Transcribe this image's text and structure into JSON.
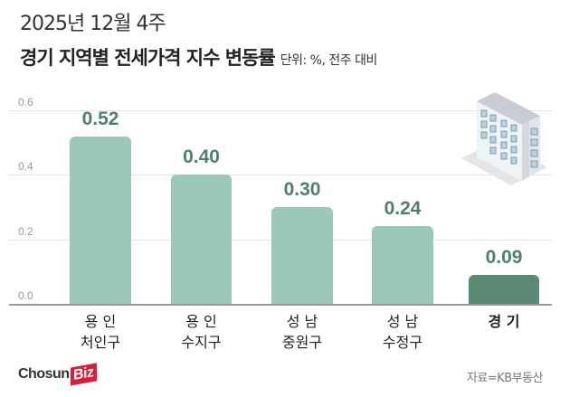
{
  "header": {
    "subtitle": "2025년 12월 4주",
    "title": "경기 지역별 전세가격 지수 변동률",
    "unit": "단위: %, 전주 대비"
  },
  "footer": {
    "logo_text": "Chosun",
    "logo_badge": "Biz",
    "source": "자료=KB부동산"
  },
  "colors": {
    "bar": "#9cc8b9",
    "bar_highlight": "#5a8a74",
    "value_label": "#4e7f6c"
  },
  "chart_data": {
    "type": "bar",
    "title": "경기 지역별 전세가격 지수 변동률",
    "subtitle": "2025년 12월 4주",
    "unit": "단위: %, 전주 대비",
    "categories": [
      "용인 처인구",
      "용인 수지구",
      "성남 중원구",
      "성남 수정구",
      "경기"
    ],
    "category_lines": [
      [
        "용 인",
        "처인구"
      ],
      [
        "용 인",
        "수지구"
      ],
      [
        "성 남",
        "중원구"
      ],
      [
        "성 남",
        "수정구"
      ],
      [
        "경 기",
        ""
      ]
    ],
    "values": [
      0.52,
      0.4,
      0.3,
      0.24,
      0.09
    ],
    "value_labels": [
      "0.52",
      "0.40",
      "0.30",
      "0.24",
      "0.09"
    ],
    "highlight_index": 4,
    "xlabel": "",
    "ylabel": "",
    "ylim": [
      0.0,
      0.6
    ],
    "yticks": [
      "0.0",
      "0.2",
      "0.4",
      "0.6"
    ],
    "grid": true,
    "legend": "none",
    "source": "자료=KB부동산"
  }
}
